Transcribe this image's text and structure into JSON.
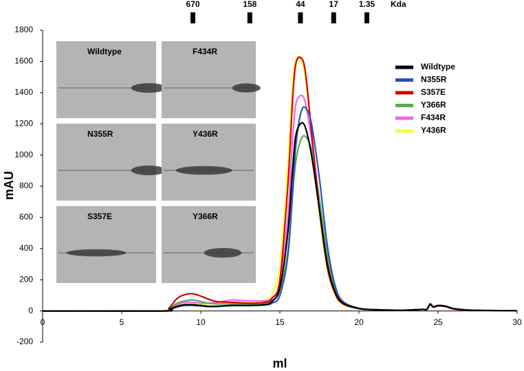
{
  "chart_data": {
    "type": "line",
    "x_label": "ml",
    "y_label": "mAU",
    "xlim": [
      0,
      30
    ],
    "ylim": [
      -200,
      1800
    ],
    "xticks": [
      0,
      5,
      10,
      15,
      20,
      25,
      30
    ],
    "yticks": [
      -200,
      0,
      200,
      400,
      600,
      800,
      1000,
      1200,
      1400,
      1600,
      1800
    ],
    "markers": [
      {
        "label": "670",
        "x": 9.5
      },
      {
        "label": "158",
        "x": 13.1
      },
      {
        "label": "44",
        "x": 16.3
      },
      {
        "label": "17",
        "x": 18.4
      },
      {
        "label": "1.35",
        "x": 20.5
      }
    ],
    "marker_unit": "Kda",
    "insets": [
      {
        "label": "Wildtype"
      },
      {
        "label": "F434R"
      },
      {
        "label": "N355R"
      },
      {
        "label": "Y436R"
      },
      {
        "label": "S357E"
      },
      {
        "label": "Y366R"
      }
    ],
    "x": [
      0,
      7.5,
      8,
      8.5,
      9,
      9.5,
      10,
      10.5,
      11,
      12,
      13,
      14,
      14.5,
      15,
      15.5,
      15.8,
      16,
      16.3,
      16.6,
      17,
      17.5,
      18,
      18.5,
      19,
      20,
      21,
      22,
      23,
      24,
      24.3,
      24.5,
      24.7,
      25,
      25.5,
      26,
      27,
      28,
      30
    ],
    "series": [
      {
        "name": "Wildtype",
        "color": "#000000",
        "values": [
          0,
          0,
          10,
          30,
          40,
          40,
          35,
          30,
          30,
          35,
          35,
          40,
          60,
          150,
          500,
          900,
          1120,
          1200,
          1180,
          1000,
          650,
          300,
          120,
          50,
          15,
          8,
          5,
          5,
          10,
          10,
          45,
          25,
          35,
          30,
          15,
          5,
          3,
          2
        ]
      },
      {
        "name": "N355R",
        "color": "#3050c0",
        "values": [
          0,
          0,
          8,
          25,
          35,
          35,
          32,
          28,
          28,
          35,
          35,
          38,
          50,
          100,
          350,
          750,
          1050,
          1260,
          1305,
          1200,
          850,
          420,
          160,
          60,
          18,
          8,
          5,
          5,
          10,
          12,
          45,
          28,
          35,
          30,
          15,
          5,
          3,
          2
        ]
      },
      {
        "name": "S357E",
        "color": "#d00000",
        "values": [
          0,
          0,
          20,
          80,
          105,
          110,
          95,
          75,
          60,
          55,
          50,
          55,
          80,
          200,
          800,
          1350,
          1580,
          1625,
          1540,
          1150,
          650,
          280,
          110,
          45,
          15,
          8,
          5,
          5,
          10,
          10,
          40,
          25,
          32,
          28,
          12,
          5,
          3,
          2
        ]
      },
      {
        "name": "Y366R",
        "color": "#5aaa50",
        "values": [
          0,
          0,
          15,
          50,
          65,
          70,
          60,
          50,
          45,
          45,
          45,
          50,
          65,
          130,
          380,
          750,
          950,
          1090,
          1120,
          1030,
          720,
          360,
          140,
          55,
          15,
          8,
          5,
          5,
          10,
          10,
          40,
          25,
          32,
          28,
          12,
          5,
          3,
          2
        ]
      },
      {
        "name": "F434R",
        "color": "#ee66ee",
        "values": [
          0,
          0,
          12,
          40,
          55,
          55,
          50,
          50,
          55,
          70,
          65,
          65,
          85,
          180,
          600,
          1100,
          1320,
          1380,
          1340,
          1100,
          700,
          330,
          130,
          50,
          15,
          8,
          5,
          5,
          10,
          10,
          40,
          25,
          32,
          28,
          12,
          5,
          3,
          2
        ]
      },
      {
        "name": "Y436R",
        "color": "#ffff30",
        "values": [
          0,
          0,
          10,
          35,
          50,
          50,
          45,
          45,
          50,
          60,
          60,
          70,
          110,
          300,
          950,
          1450,
          1610,
          1620,
          1500,
          1100,
          620,
          270,
          100,
          40,
          15,
          8,
          5,
          5,
          10,
          10,
          40,
          25,
          32,
          28,
          12,
          5,
          3,
          2
        ]
      }
    ]
  }
}
